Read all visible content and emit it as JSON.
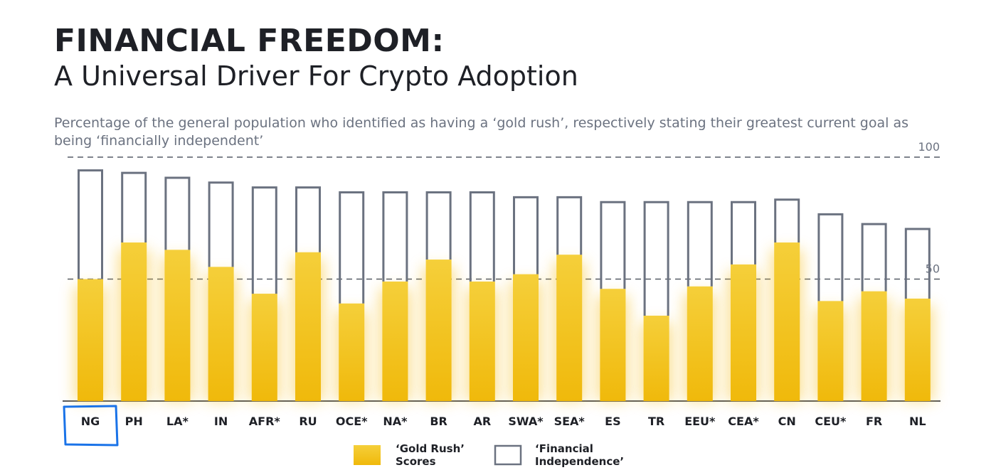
{
  "header": {
    "title": "FINANCIAL FREEDOM:",
    "subtitle": "A Universal Driver For Crypto Adoption",
    "description": "Percentage of the general population who identified as having a ‘gold rush’, respectively stating their greatest current goal as being ‘financially independent’"
  },
  "chart_data": {
    "type": "bar",
    "title": "FINANCIAL FREEDOM:",
    "subtitle": "A Universal Driver For Crypto Adoption",
    "categories": [
      "NG",
      "PH",
      "LA*",
      "IN",
      "AFR*",
      "RU",
      "OCE*",
      "NA*",
      "BR",
      "AR",
      "SWA*",
      "SEA*",
      "ES",
      "TR",
      "EEU*",
      "CEA*",
      "CN",
      "CEU*",
      "FR",
      "NL"
    ],
    "series": [
      {
        "name": "‘Gold Rush’ Scores",
        "style": "filled",
        "color": "#f0b90b",
        "values": [
          50,
          65,
          62,
          55,
          44,
          61,
          40,
          49,
          58,
          49,
          52,
          60,
          46,
          35,
          47,
          56,
          65,
          41,
          45,
          42
        ]
      },
      {
        "name": "‘Financial Independence’",
        "style": "outline",
        "color": "#6b7280",
        "values": [
          95,
          94,
          92,
          90,
          88,
          88,
          86,
          86,
          86,
          86,
          84,
          84,
          82,
          82,
          82,
          82,
          83,
          77,
          73,
          71
        ]
      }
    ],
    "ylim": [
      0,
      100
    ],
    "yticks": [
      "50",
      "100"
    ],
    "grid": "dashed at 50 and 100",
    "legend": "bottom-center",
    "legend_labels": [
      [
        "‘Gold Rush’",
        "Scores"
      ],
      [
        "‘Financial",
        "Independence’"
      ]
    ],
    "annotation": {
      "type": "hand-drawn box",
      "target": "NG",
      "color": "#1a73e8"
    }
  }
}
